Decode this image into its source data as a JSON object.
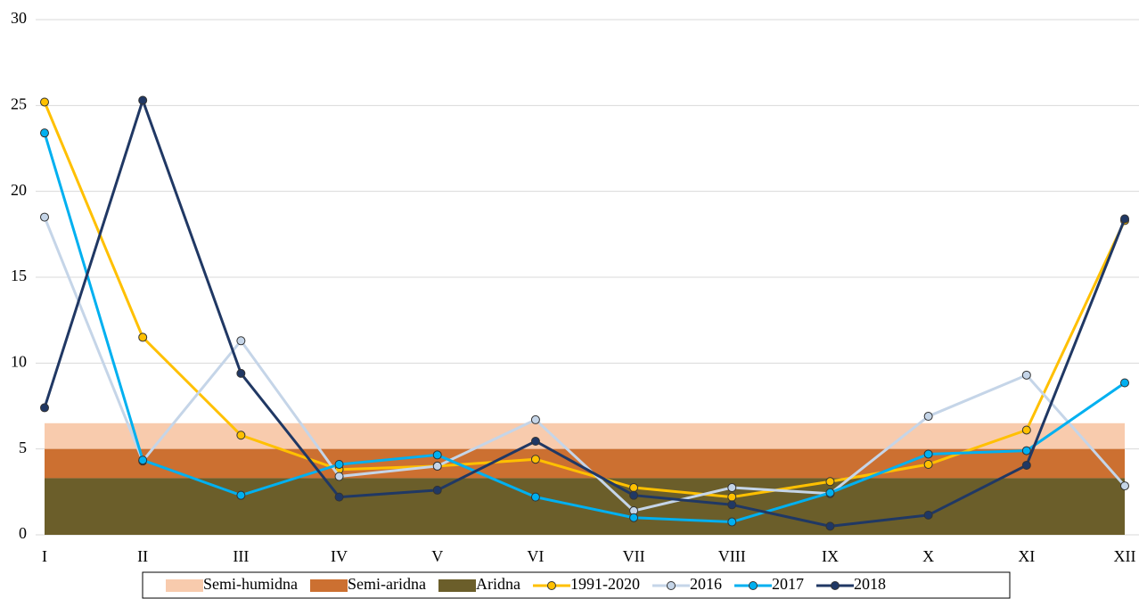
{
  "chart_data": {
    "type": "line",
    "categories": [
      "I",
      "II",
      "III",
      "IV",
      "V",
      "VI",
      "VII",
      "VIII",
      "IX",
      "X",
      "XI",
      "XII"
    ],
    "bands": [
      {
        "name": "Semi-humidna",
        "from": 5,
        "to": 6.5,
        "color": "#f8cbad"
      },
      {
        "name": "Semi-aridna",
        "from": 3.3,
        "to": 5,
        "color": "#cc7031"
      },
      {
        "name": "Aridna",
        "from": 0,
        "to": 3.3,
        "color": "#6b5e2a"
      }
    ],
    "series": [
      {
        "name": "1991-2020",
        "color": "#ffc000",
        "values": [
          25.2,
          11.5,
          5.8,
          3.8,
          4.0,
          4.4,
          2.75,
          2.2,
          3.1,
          4.1,
          6.1,
          18.3
        ]
      },
      {
        "name": "2016",
        "color": "#c5d5e8",
        "values": [
          18.5,
          4.3,
          11.3,
          3.4,
          4.0,
          6.7,
          1.4,
          2.75,
          2.4,
          6.9,
          9.3,
          2.85
        ]
      },
      {
        "name": "2017",
        "color": "#00b0f0",
        "values": [
          23.4,
          4.35,
          2.3,
          4.1,
          4.65,
          2.2,
          1.0,
          0.75,
          2.45,
          4.7,
          4.9,
          8.85
        ]
      },
      {
        "name": "2018",
        "color": "#203864",
        "values": [
          7.4,
          25.3,
          9.4,
          2.2,
          2.6,
          5.45,
          2.3,
          1.75,
          0.5,
          1.15,
          4.05,
          18.4
        ]
      }
    ],
    "ylim": [
      0,
      30
    ],
    "yticks": [
      0,
      5,
      10,
      15,
      20,
      25,
      30
    ],
    "grid": true
  }
}
